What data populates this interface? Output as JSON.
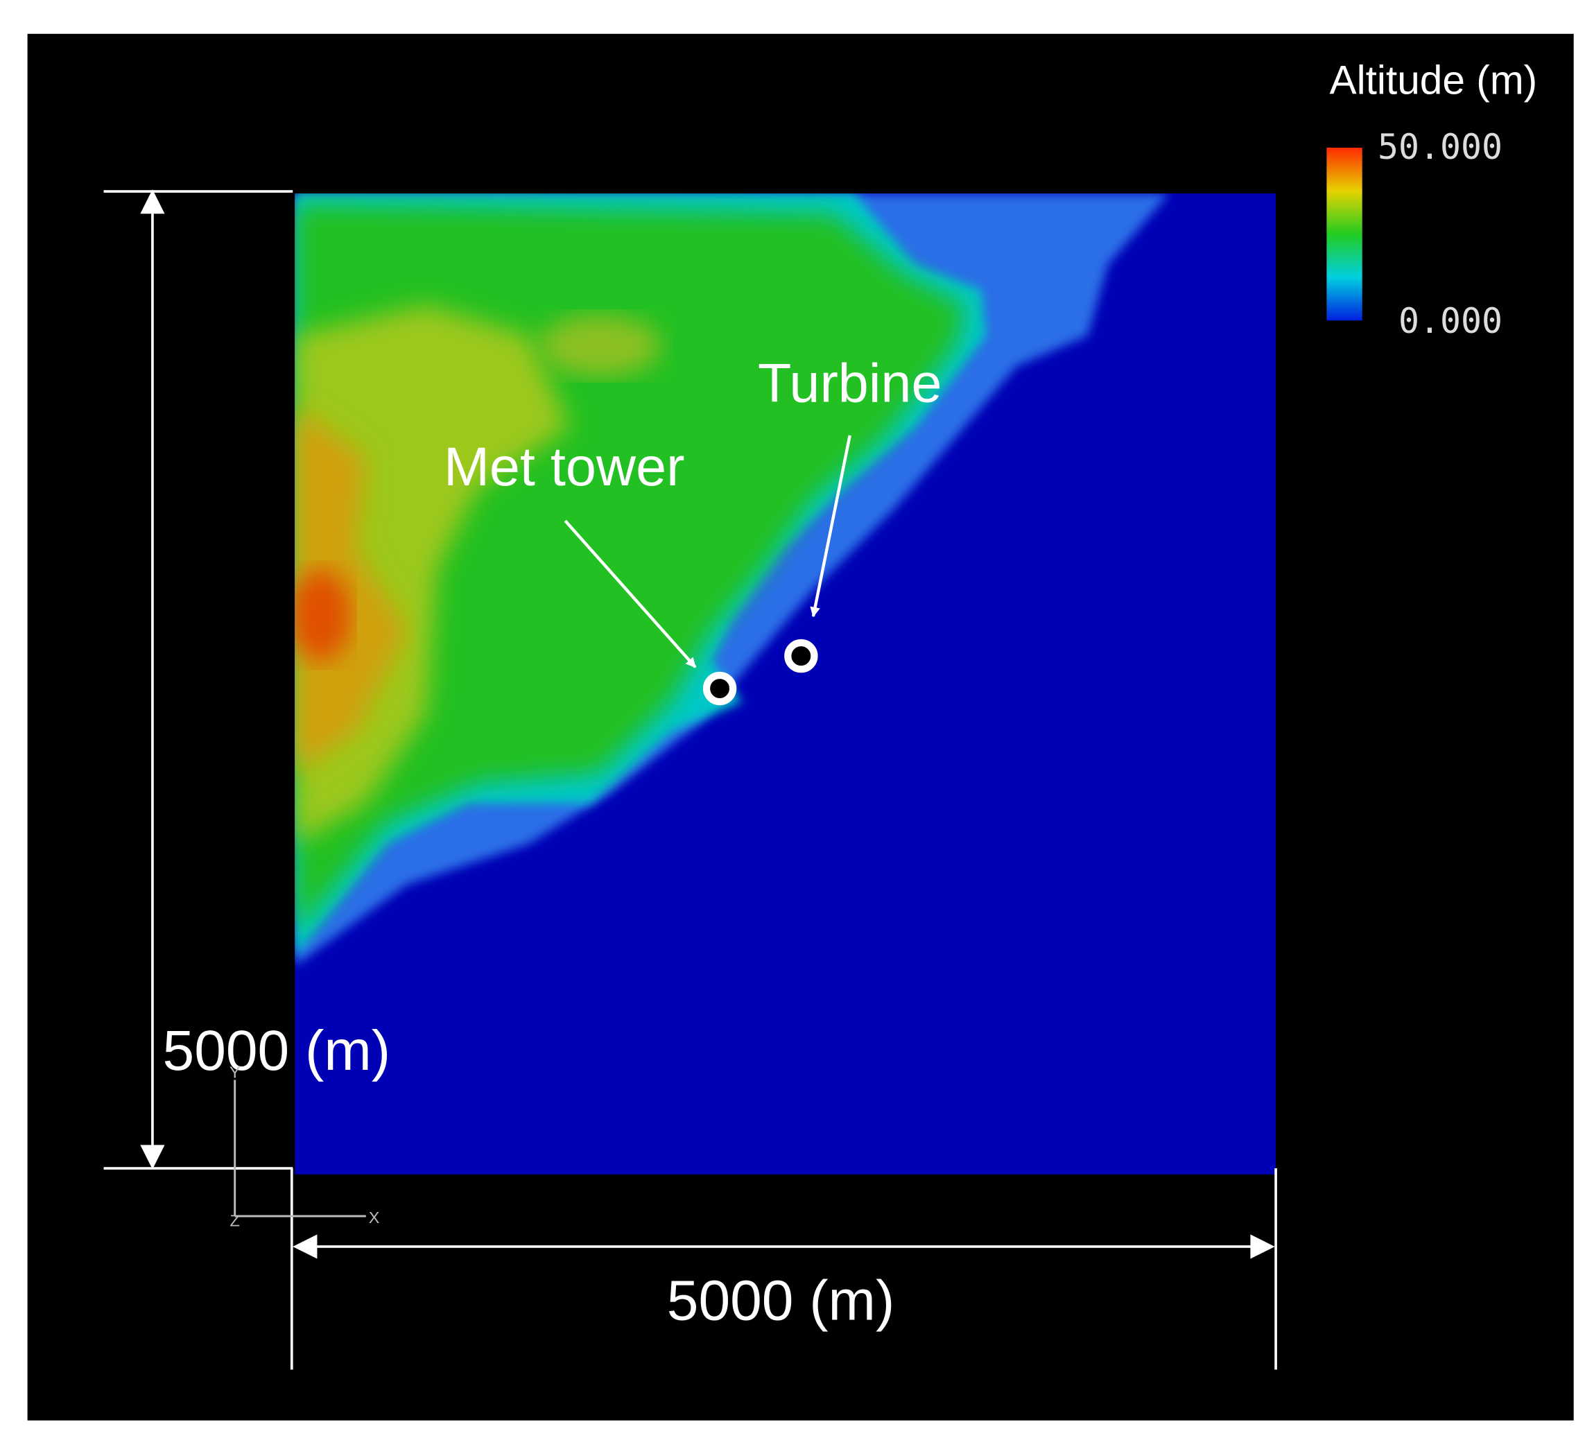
{
  "colorbar": {
    "title": "Altitude (m)",
    "max_label": "50.000",
    "min_label": "0.000"
  },
  "annotations": {
    "met_tower": "Met tower",
    "turbine": "Turbine"
  },
  "dimensions": {
    "height": "5000 (m)",
    "width": "5000 (m)"
  },
  "axes_glyph": {
    "y": "Y",
    "z": "Z",
    "x": "X"
  }
}
